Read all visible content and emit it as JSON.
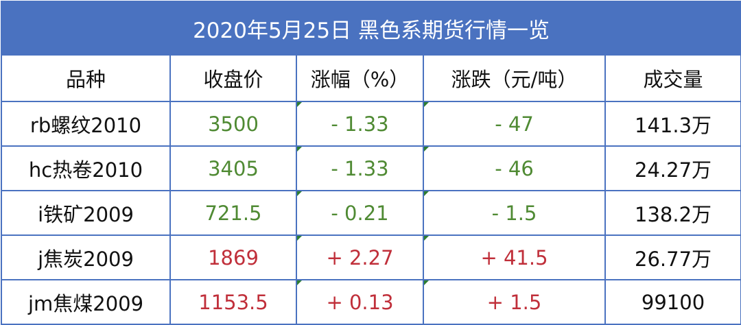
{
  "header": {
    "title": "2020年5月25日  黑色系期货行情一览"
  },
  "table": {
    "columns": [
      "品种",
      "收盘价",
      "涨幅（%）",
      "涨跌（元/吨）",
      "成交量"
    ],
    "rows": [
      [
        "rb螺纹2010",
        "3500",
        "- 1.33",
        "- 47",
        "141.3万"
      ],
      [
        "hc热卷2010",
        "3405",
        "- 1.33",
        "- 46",
        "24.27万"
      ],
      [
        "i铁矿2009",
        "721.5",
        "- 0.21",
        "- 1.5",
        "138.2万"
      ],
      [
        "j焦炭2009",
        "1869",
        "+ 2.27",
        "+ 41.5",
        "26.77万"
      ],
      [
        "jm焦煤2009",
        "1153.5",
        "+ 0.13",
        "+ 1.5",
        "99100"
      ]
    ]
  }
}
